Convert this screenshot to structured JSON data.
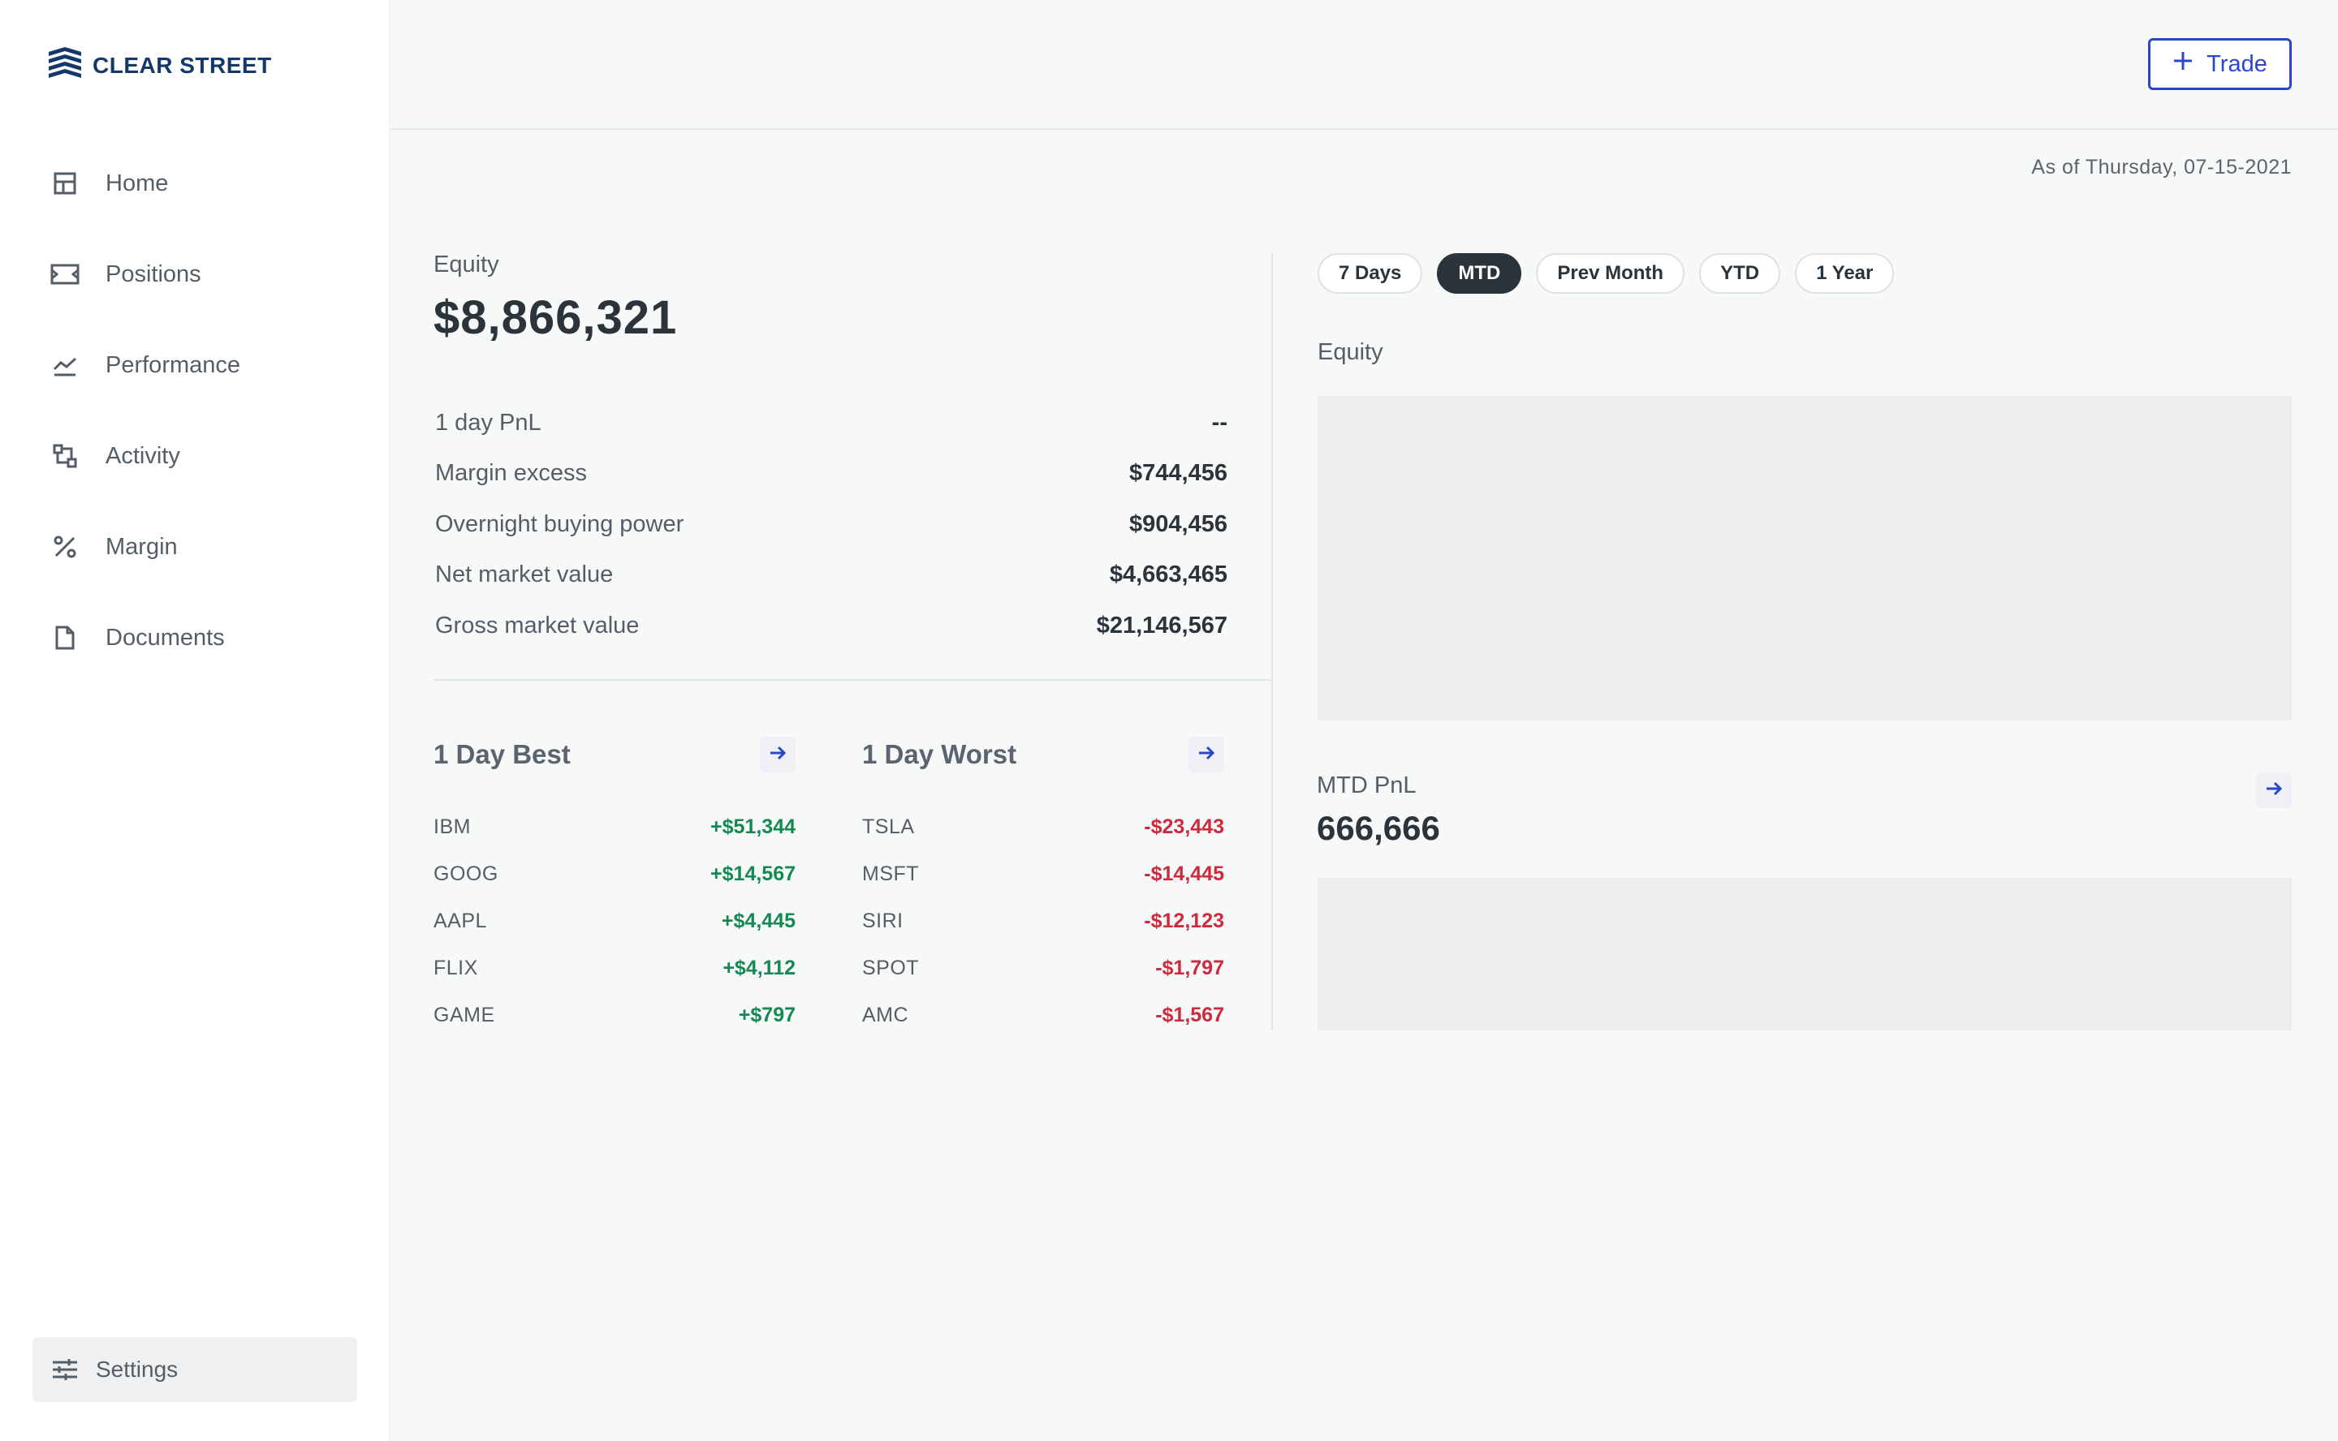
{
  "brand": {
    "name": "CLEAR STREET"
  },
  "sidebar": {
    "items": [
      {
        "label": "Home",
        "icon": "home-grid-icon"
      },
      {
        "label": "Positions",
        "icon": "positions-icon"
      },
      {
        "label": "Performance",
        "icon": "performance-chart-icon"
      },
      {
        "label": "Activity",
        "icon": "activity-icon"
      },
      {
        "label": "Margin",
        "icon": "margin-percent-icon"
      },
      {
        "label": "Documents",
        "icon": "document-icon"
      }
    ],
    "settings_label": "Settings"
  },
  "header": {
    "trade_label": "Trade",
    "as_of": "As of Thursday, 07-15-2021"
  },
  "summary": {
    "equity_label": "Equity",
    "equity_value": "$8,866,321",
    "stats": [
      {
        "label": "1 day PnL",
        "value": "--"
      },
      {
        "label": "Margin excess",
        "value": "$744,456"
      },
      {
        "label": "Overnight buying power",
        "value": "$904,456"
      },
      {
        "label": "Net market value",
        "value": "$4,663,465"
      },
      {
        "label": "Gross market value",
        "value": "$21,146,567"
      }
    ]
  },
  "best": {
    "title": "1 Day Best",
    "rows": [
      {
        "ticker": "IBM",
        "value": "+$51,344"
      },
      {
        "ticker": "GOOG",
        "value": "+$14,567"
      },
      {
        "ticker": "AAPL",
        "value": "+$4,445"
      },
      {
        "ticker": "FLIX",
        "value": "+$4,112"
      },
      {
        "ticker": "GAME",
        "value": "+$797"
      }
    ]
  },
  "worst": {
    "title": "1 Day Worst",
    "rows": [
      {
        "ticker": "TSLA",
        "value": "-$23,443"
      },
      {
        "ticker": "MSFT",
        "value": "-$14,445"
      },
      {
        "ticker": "SIRI",
        "value": "-$12,123"
      },
      {
        "ticker": "SPOT",
        "value": "-$1,797"
      },
      {
        "ticker": "AMC",
        "value": "-$1,567"
      }
    ]
  },
  "chart_panel": {
    "ranges": [
      "7 Days",
      "MTD",
      "Prev Month",
      "YTD",
      "1 Year"
    ],
    "selected_range": "MTD",
    "equity_label": "Equity",
    "pnl_label": "MTD PnL",
    "pnl_value": "666,666"
  },
  "colors": {
    "accent": "#2b47c9",
    "gain": "#148a52",
    "loss": "#d0283c",
    "brand": "#14386a"
  }
}
